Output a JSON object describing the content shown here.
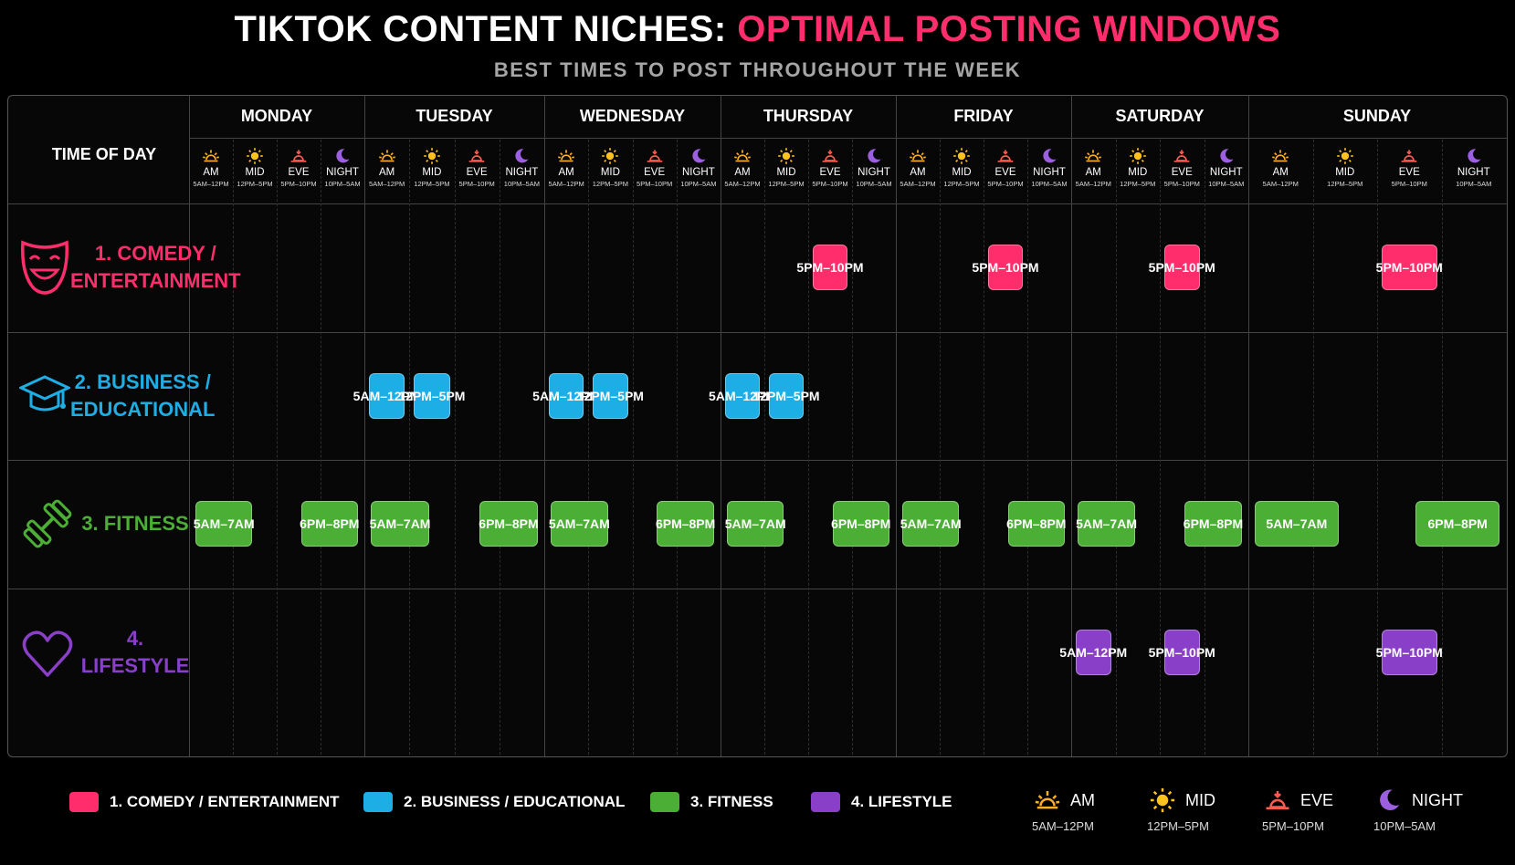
{
  "header": {
    "title_main": "TIKTOK CONTENT NICHES: ",
    "title_accent": "OPTIMAL POSTING WINDOWS",
    "subtitle": "BEST TIMES TO POST THROUGHOUT THE WEEK"
  },
  "colors": {
    "comedy": "#ff2d6b",
    "business": "#1eaee6",
    "fitness": "#4caf35",
    "lifestyle": "#8a3fc8",
    "am_icon": "#ffb020",
    "mid_icon": "#ffc21a",
    "eve_icon": "#ff5a4f",
    "night_icon": "#9b5fe0"
  },
  "chart_data": {
    "type": "table",
    "title": "TIKTOK CONTENT NICHES: OPTIMAL POSTING WINDOWS",
    "subtitle": "BEST TIMES TO POST THROUGHOUT THE WEEK",
    "corner_label": "TIME OF DAY",
    "days": [
      "MONDAY",
      "TUESDAY",
      "WEDNESDAY",
      "THURSDAY",
      "FRIDAY",
      "SATURDAY",
      "SUNDAY"
    ],
    "slots": [
      {
        "key": "am",
        "label": "AM",
        "range": "5AM–12PM",
        "icon": "sunrise-icon"
      },
      {
        "key": "mid",
        "label": "MID",
        "range": "12PM–5PM",
        "icon": "sun-icon"
      },
      {
        "key": "eve",
        "label": "EVE",
        "range": "5PM–10PM",
        "icon": "sunset-icon"
      },
      {
        "key": "night",
        "label": "NIGHT",
        "range": "10PM–5AM",
        "icon": "moon-icon"
      }
    ],
    "niches": [
      {
        "key": "comedy",
        "label_line1": "1. COMEDY /",
        "label_line2": "ENTERTAINMENT",
        "icon": "theater-mask-icon"
      },
      {
        "key": "business",
        "label_line1": "2. BUSINESS /",
        "label_line2": "EDUCATIONAL",
        "icon": "graduation-cap-icon"
      },
      {
        "key": "fitness",
        "label_line1": "3. FITNESS",
        "label_line2": "",
        "icon": "dumbbell-icon"
      },
      {
        "key": "lifestyle",
        "label_line1": "4. LIFESTYLE",
        "label_line2": "",
        "icon": "heart-icon"
      }
    ],
    "windows": [
      {
        "niche": "comedy",
        "day": "THURSDAY",
        "label": "5PM–10PM",
        "start_hour": 17,
        "end_hour": 22
      },
      {
        "niche": "comedy",
        "day": "FRIDAY",
        "label": "5PM–10PM",
        "start_hour": 17,
        "end_hour": 22
      },
      {
        "niche": "comedy",
        "day": "SATURDAY",
        "label": "5PM–10PM",
        "start_hour": 17,
        "end_hour": 22
      },
      {
        "niche": "comedy",
        "day": "SUNDAY",
        "label": "5PM–10PM",
        "start_hour": 17,
        "end_hour": 22
      },
      {
        "niche": "business",
        "day": "TUESDAY",
        "label": "5AM–12PM",
        "start_hour": 5,
        "end_hour": 12
      },
      {
        "niche": "business",
        "day": "TUESDAY",
        "label": "12PM–5PM",
        "start_hour": 12,
        "end_hour": 17
      },
      {
        "niche": "business",
        "day": "WEDNESDAY",
        "label": "5AM–12PM",
        "start_hour": 5,
        "end_hour": 12
      },
      {
        "niche": "business",
        "day": "WEDNESDAY",
        "label": "12PM–5PM",
        "start_hour": 12,
        "end_hour": 17
      },
      {
        "niche": "business",
        "day": "THURSDAY",
        "label": "5AM–12PM",
        "start_hour": 5,
        "end_hour": 12
      },
      {
        "niche": "business",
        "day": "THURSDAY",
        "label": "12PM–5PM",
        "start_hour": 12,
        "end_hour": 17
      },
      {
        "niche": "fitness",
        "day": "MONDAY",
        "label": "5AM–7AM",
        "start_hour": 5,
        "end_hour": 7
      },
      {
        "niche": "fitness",
        "day": "MONDAY",
        "label": "6PM–8PM",
        "start_hour": 18,
        "end_hour": 20
      },
      {
        "niche": "fitness",
        "day": "TUESDAY",
        "label": "5AM–7AM",
        "start_hour": 5,
        "end_hour": 7
      },
      {
        "niche": "fitness",
        "day": "TUESDAY",
        "label": "6PM–8PM",
        "start_hour": 18,
        "end_hour": 20
      },
      {
        "niche": "fitness",
        "day": "WEDNESDAY",
        "label": "5AM–7AM",
        "start_hour": 5,
        "end_hour": 7
      },
      {
        "niche": "fitness",
        "day": "WEDNESDAY",
        "label": "6PM–8PM",
        "start_hour": 18,
        "end_hour": 20
      },
      {
        "niche": "fitness",
        "day": "THURSDAY",
        "label": "5AM–7AM",
        "start_hour": 5,
        "end_hour": 7
      },
      {
        "niche": "fitness",
        "day": "THURSDAY",
        "label": "6PM–8PM",
        "start_hour": 18,
        "end_hour": 20
      },
      {
        "niche": "fitness",
        "day": "FRIDAY",
        "label": "5AM–7AM",
        "start_hour": 5,
        "end_hour": 7
      },
      {
        "niche": "fitness",
        "day": "FRIDAY",
        "label": "6PM–8PM",
        "start_hour": 18,
        "end_hour": 20
      },
      {
        "niche": "fitness",
        "day": "SATURDAY",
        "label": "5AM–7AM",
        "start_hour": 5,
        "end_hour": 7
      },
      {
        "niche": "fitness",
        "day": "SATURDAY",
        "label": "6PM–8PM",
        "start_hour": 18,
        "end_hour": 20
      },
      {
        "niche": "fitness",
        "day": "SUNDAY",
        "label": "5AM–7AM",
        "start_hour": 5,
        "end_hour": 7
      },
      {
        "niche": "fitness",
        "day": "SUNDAY",
        "label": "6PM–8PM",
        "start_hour": 18,
        "end_hour": 20
      },
      {
        "niche": "lifestyle",
        "day": "SATURDAY",
        "label": "5AM–12PM",
        "start_hour": 5,
        "end_hour": 12
      },
      {
        "niche": "lifestyle",
        "day": "SATURDAY",
        "label": "5PM–10PM",
        "start_hour": 17,
        "end_hour": 22
      },
      {
        "niche": "lifestyle",
        "day": "SUNDAY",
        "label": "5PM–10PM",
        "start_hour": 17,
        "end_hour": 22
      }
    ],
    "legend": [
      {
        "key": "comedy",
        "label": "1. COMEDY / ENTERTAINMENT"
      },
      {
        "key": "business",
        "label": "2. BUSINESS / EDUCATIONAL"
      },
      {
        "key": "fitness",
        "label": "3. FITNESS"
      },
      {
        "key": "lifestyle",
        "label": "4. LIFESTYLE"
      }
    ],
    "time_key": [
      {
        "key": "am",
        "label": "AM",
        "range": "5AM–12PM",
        "icon": "sunrise-icon"
      },
      {
        "key": "mid",
        "label": "MID",
        "range": "12PM–5PM",
        "icon": "sun-icon"
      },
      {
        "key": "eve",
        "label": "EVE",
        "range": "5PM–10PM",
        "icon": "sunset-icon"
      },
      {
        "key": "night",
        "label": "NIGHT",
        "range": "10PM–5AM",
        "icon": "moon-icon"
      }
    ]
  }
}
